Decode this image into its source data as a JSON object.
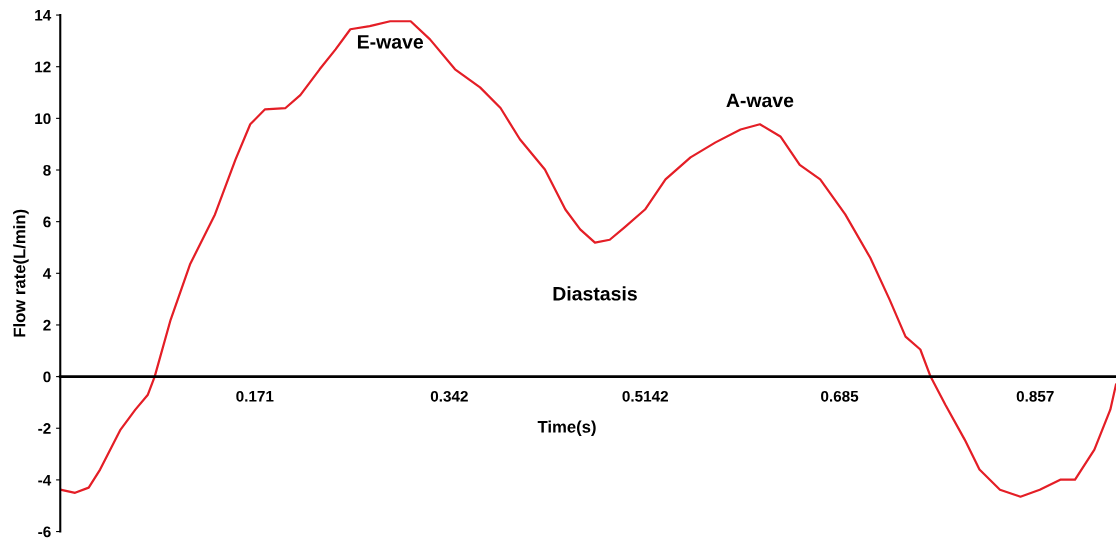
{
  "chart_data": {
    "type": "line",
    "xlabel": "Time(s)",
    "ylabel": "Flow rate(L/min)",
    "xlim": [
      0,
      0.928
    ],
    "ylim": [
      -6,
      14
    ],
    "xticks": [
      0.171,
      0.342,
      0.5142,
      0.685,
      0.857
    ],
    "yticks": [
      -6,
      -4,
      -2,
      0,
      2,
      4,
      6,
      8,
      10,
      12,
      14
    ],
    "grid": false,
    "marker": "none",
    "line_style": "solid",
    "annotations": [
      {
        "text": "E-wave",
        "x": 0.29,
        "y": 13.76
      },
      {
        "text": "Diastasis",
        "x": 0.47,
        "y": 5.19
      },
      {
        "text": "A-wave",
        "x": 0.615,
        "y": 9.77
      }
    ],
    "series": [
      {
        "color": "#e41e26",
        "x": [
          0,
          0.013,
          0.025,
          0.035,
          0.053,
          0.066,
          0.077,
          0.083,
          0.097,
          0.114,
          0.136,
          0.154,
          0.167,
          0.18,
          0.198,
          0.211,
          0.228,
          0.242,
          0.255,
          0.272,
          0.29,
          0.308,
          0.325,
          0.347,
          0.369,
          0.387,
          0.404,
          0.426,
          0.444,
          0.457,
          0.47,
          0.483,
          0.496,
          0.514,
          0.532,
          0.554,
          0.576,
          0.598,
          0.615,
          0.633,
          0.65,
          0.668,
          0.69,
          0.712,
          0.729,
          0.743,
          0.756,
          0.765,
          0.778,
          0.795,
          0.808,
          0.826,
          0.844,
          0.861,
          0.879,
          0.892,
          0.909,
          0.923,
          0.928
        ],
        "values": [
          -4.38,
          -4.5,
          -4.3,
          -3.6,
          -2.05,
          -1.28,
          -0.7,
          0,
          2.2,
          4.34,
          6.28,
          8.4,
          9.77,
          10.35,
          10.4,
          10.9,
          11.9,
          12.67,
          13.45,
          13.57,
          13.76,
          13.76,
          13.06,
          11.9,
          11.2,
          10.4,
          9.19,
          8.02,
          6.47,
          5.7,
          5.19,
          5.3,
          5.78,
          6.47,
          7.64,
          8.49,
          9.07,
          9.57,
          9.77,
          9.3,
          8.2,
          7.64,
          6.28,
          4.6,
          2.98,
          1.55,
          1.05,
          0,
          -1.09,
          -2.44,
          -3.6,
          -4.38,
          -4.65,
          -4.38,
          -3.99,
          -3.99,
          -2.83,
          -1.28,
          -0.31
        ]
      }
    ]
  }
}
